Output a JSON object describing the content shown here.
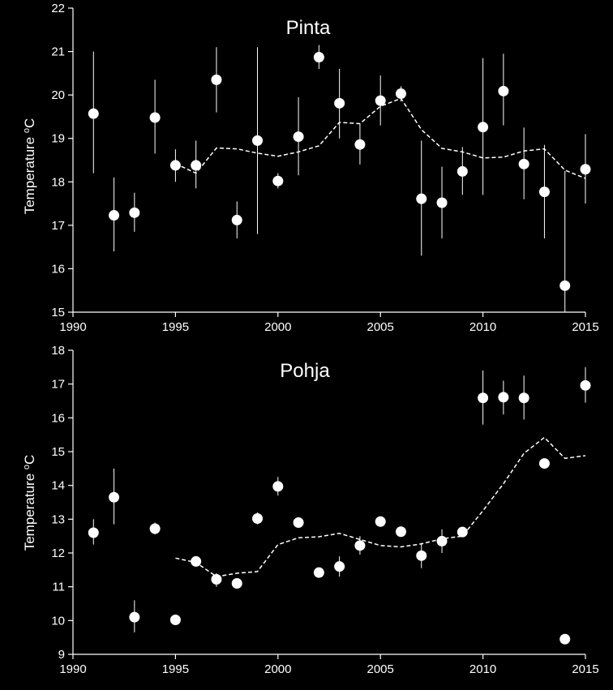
{
  "chart_data": [
    {
      "type": "scatter",
      "title": "Pinta",
      "xlabel": "",
      "ylabel": {
        "text": "Temperature ",
        "sup": "o",
        "unit": "C"
      },
      "xlim": [
        1990,
        2015
      ],
      "ylim": [
        15,
        22
      ],
      "xticks": [
        1990,
        1995,
        2000,
        2005,
        2010,
        2015
      ],
      "yticks": [
        15,
        16,
        17,
        18,
        19,
        20,
        21,
        22
      ],
      "colors": {
        "background": "#000000",
        "foreground": "#ffffff"
      },
      "points": [
        {
          "x": 1991,
          "y": 19.57,
          "lo": 18.2,
          "hi": 21.0
        },
        {
          "x": 1992,
          "y": 17.23,
          "lo": 16.4,
          "hi": 18.1
        },
        {
          "x": 1993,
          "y": 17.29,
          "lo": 16.85,
          "hi": 17.75
        },
        {
          "x": 1994,
          "y": 19.48,
          "lo": 18.65,
          "hi": 20.35
        },
        {
          "x": 1995,
          "y": 18.38,
          "lo": 18.0,
          "hi": 18.75
        },
        {
          "x": 1996,
          "y": 18.38,
          "lo": 17.85,
          "hi": 18.95
        },
        {
          "x": 1997,
          "y": 20.35,
          "lo": 19.6,
          "hi": 21.1
        },
        {
          "x": 1998,
          "y": 17.12,
          "lo": 16.7,
          "hi": 17.55
        },
        {
          "x": 1999,
          "y": 18.95,
          "lo": 16.8,
          "hi": 21.1
        },
        {
          "x": 2000,
          "y": 18.02,
          "lo": 17.85,
          "hi": 18.2
        },
        {
          "x": 2001,
          "y": 19.04,
          "lo": 18.15,
          "hi": 19.95
        },
        {
          "x": 2002,
          "y": 20.87,
          "lo": 20.6,
          "hi": 21.15
        },
        {
          "x": 2003,
          "y": 19.81,
          "lo": 19.0,
          "hi": 20.6
        },
        {
          "x": 2004,
          "y": 18.86,
          "lo": 18.4,
          "hi": 19.35
        },
        {
          "x": 2005,
          "y": 19.87,
          "lo": 19.3,
          "hi": 20.45
        },
        {
          "x": 2006,
          "y": 20.03,
          "lo": 19.85,
          "hi": 20.2
        },
        {
          "x": 2007,
          "y": 17.61,
          "lo": 16.3,
          "hi": 18.95
        },
        {
          "x": 2008,
          "y": 17.52,
          "lo": 16.7,
          "hi": 18.35
        },
        {
          "x": 2009,
          "y": 18.24,
          "lo": 17.7,
          "hi": 18.8
        },
        {
          "x": 2010,
          "y": 19.26,
          "lo": 17.7,
          "hi": 20.85
        },
        {
          "x": 2011,
          "y": 20.09,
          "lo": 19.3,
          "hi": 20.95
        },
        {
          "x": 2012,
          "y": 18.41,
          "lo": 17.6,
          "hi": 19.25
        },
        {
          "x": 2013,
          "y": 17.77,
          "lo": 16.7,
          "hi": 18.85
        },
        {
          "x": 2014,
          "y": 15.61,
          "lo": 15.0,
          "hi": 18.25
        },
        {
          "x": 2015,
          "y": 18.29,
          "lo": 17.5,
          "hi": 19.1
        }
      ],
      "trend": {
        "x": [
          1995,
          1996,
          1997,
          1998,
          1999,
          2000,
          2001,
          2002,
          2003,
          2004,
          2005,
          2006,
          2007,
          2008,
          2009,
          2010,
          2011,
          2012,
          2013,
          2014,
          2015
        ],
        "y": [
          18.42,
          18.2,
          18.78,
          18.76,
          18.66,
          18.59,
          18.69,
          18.83,
          19.37,
          19.34,
          19.74,
          19.92,
          19.2,
          18.77,
          18.69,
          18.55,
          18.57,
          18.71,
          18.76,
          18.27,
          18.08
        ]
      }
    },
    {
      "type": "scatter",
      "title": "Pohja",
      "xlabel": "",
      "ylabel": {
        "text": "Temperature ",
        "sup": "o",
        "unit": "C"
      },
      "xlim": [
        1990,
        2015
      ],
      "ylim": [
        9,
        18
      ],
      "xticks": [
        1990,
        1995,
        2000,
        2005,
        2010,
        2015
      ],
      "yticks": [
        9,
        10,
        11,
        12,
        13,
        14,
        15,
        16,
        17,
        18
      ],
      "colors": {
        "background": "#000000",
        "foreground": "#ffffff"
      },
      "points": [
        {
          "x": 1991,
          "y": 12.6,
          "lo": 12.25,
          "hi": 13.0
        },
        {
          "x": 1992,
          "y": 13.65,
          "lo": 12.85,
          "hi": 14.5
        },
        {
          "x": 1993,
          "y": 10.1,
          "lo": 9.65,
          "hi": 10.6
        },
        {
          "x": 1994,
          "y": 12.72,
          "lo": 12.55,
          "hi": 12.9
        },
        {
          "x": 1995,
          "y": 10.02,
          "lo": 10.02,
          "hi": 10.02
        },
        {
          "x": 1996,
          "y": 11.75,
          "lo": 11.6,
          "hi": 11.9
        },
        {
          "x": 1997,
          "y": 11.22,
          "lo": 11.0,
          "hi": 11.4
        },
        {
          "x": 1998,
          "y": 11.1,
          "lo": 11.1,
          "hi": 11.1
        },
        {
          "x": 1999,
          "y": 13.02,
          "lo": 12.85,
          "hi": 13.2
        },
        {
          "x": 2000,
          "y": 13.97,
          "lo": 13.7,
          "hi": 14.25
        },
        {
          "x": 2001,
          "y": 12.9,
          "lo": 12.9,
          "hi": 12.9
        },
        {
          "x": 2002,
          "y": 11.42,
          "lo": 11.42,
          "hi": 11.42
        },
        {
          "x": 2003,
          "y": 11.6,
          "lo": 11.3,
          "hi": 11.9
        },
        {
          "x": 2004,
          "y": 12.22,
          "lo": 11.95,
          "hi": 12.5
        },
        {
          "x": 2005,
          "y": 12.93,
          "lo": 12.93,
          "hi": 12.93
        },
        {
          "x": 2006,
          "y": 12.63,
          "lo": 12.63,
          "hi": 12.63
        },
        {
          "x": 2007,
          "y": 11.92,
          "lo": 11.55,
          "hi": 12.3
        },
        {
          "x": 2008,
          "y": 12.35,
          "lo": 12.0,
          "hi": 12.7
        },
        {
          "x": 2009,
          "y": 12.62,
          "lo": 12.5,
          "hi": 12.75
        },
        {
          "x": 2010,
          "y": 16.59,
          "lo": 15.8,
          "hi": 17.4
        },
        {
          "x": 2011,
          "y": 16.61,
          "lo": 16.1,
          "hi": 17.1
        },
        {
          "x": 2012,
          "y": 16.59,
          "lo": 15.95,
          "hi": 17.25
        },
        {
          "x": 2013,
          "y": 14.65,
          "lo": 14.65,
          "hi": 14.65
        },
        {
          "x": 2014,
          "y": 9.45,
          "lo": 9.45,
          "hi": 9.45
        },
        {
          "x": 2015,
          "y": 16.96,
          "lo": 16.45,
          "hi": 17.5
        }
      ],
      "trend": {
        "x": [
          1995,
          1996,
          1997,
          1998,
          1999,
          2000,
          2001,
          2002,
          2003,
          2004,
          2005,
          2006,
          2007,
          2008,
          2009,
          2010,
          2011,
          2012,
          2013,
          2014,
          2015
        ],
        "y": [
          11.85,
          11.72,
          11.3,
          11.4,
          11.45,
          12.25,
          12.45,
          12.48,
          12.58,
          12.4,
          12.22,
          12.18,
          12.27,
          12.42,
          12.5,
          13.25,
          14.05,
          14.95,
          15.42,
          14.8,
          14.88
        ]
      }
    }
  ]
}
